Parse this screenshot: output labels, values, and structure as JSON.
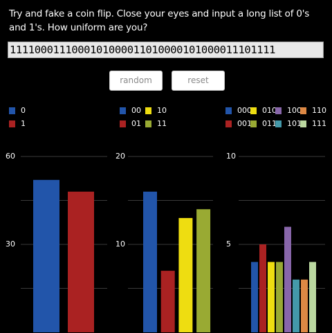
{
  "header": {
    "prompt": "Try and fake a coin flip. Close your eyes and input a long list of 0's and 1's. How uniform are you?"
  },
  "input": {
    "value": "1111000111000101000011010000101000011101111"
  },
  "buttons": [
    "random",
    "reset"
  ],
  "chart_data": [
    {
      "type": "bar",
      "categories": [
        "0",
        "1"
      ],
      "values": [
        52,
        48
      ],
      "colors": [
        "#2255aa",
        "#aa2222"
      ],
      "ylim": [
        0,
        60
      ],
      "yticks": [
        30,
        60
      ],
      "minor_yticks": [
        15,
        45
      ],
      "grid": true
    },
    {
      "type": "bar",
      "categories": [
        "00",
        "01",
        "10",
        "11"
      ],
      "values": [
        16,
        7,
        13,
        14
      ],
      "colors": [
        "#2255aa",
        "#aa2222",
        "#eedd11",
        "#99aa33"
      ],
      "ylim": [
        0,
        20
      ],
      "yticks": [
        10,
        20
      ],
      "minor_yticks": [
        5,
        15
      ],
      "grid": true
    },
    {
      "type": "bar",
      "categories": [
        "000",
        "001",
        "010",
        "011",
        "100",
        "101",
        "110",
        "111"
      ],
      "values": [
        4,
        5,
        4,
        4,
        6,
        3,
        3,
        4
      ],
      "colors": [
        "#2255aa",
        "#aa2222",
        "#eedd11",
        "#99aa33",
        "#8866aa",
        "#4499aa",
        "#dd8844",
        "#bbd8a0"
      ],
      "ylim": [
        0,
        10
      ],
      "yticks": [
        5,
        10
      ],
      "minor_yticks": [
        2.5,
        7.5
      ],
      "grid": true
    }
  ]
}
